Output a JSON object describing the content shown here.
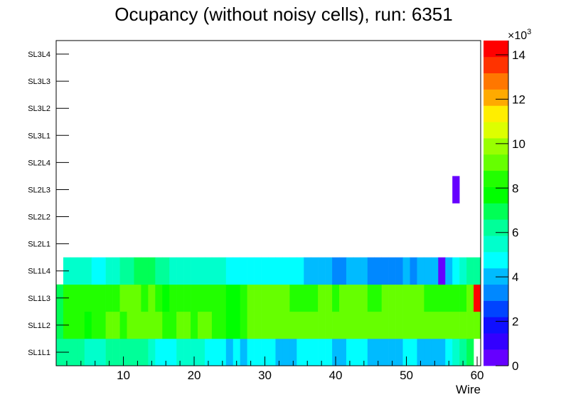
{
  "chart_data": {
    "type": "heatmap",
    "title": "Ocupancy (without noisy cells), run: 6351",
    "xlabel": "Wire",
    "ylabel": "",
    "xlim": [
      0.5,
      60.5
    ],
    "x_ticks": [
      10,
      20,
      30,
      40,
      50,
      60
    ],
    "y_categories": [
      "SL1L1",
      "SL1L2",
      "SL1L3",
      "SL1L4",
      "SL2L1",
      "SL2L2",
      "SL2L3",
      "SL2L4",
      "SL3L1",
      "SL3L2",
      "SL3L3",
      "SL3L4"
    ],
    "z_unit_label": "×10",
    "z_unit_exp": "3",
    "z_range_thousands": [
      0,
      14.64
    ],
    "z_ticks": [
      "0",
      "2",
      "4",
      "6",
      "8",
      "10",
      "12",
      "14"
    ],
    "palette": [
      "#6600ff",
      "#3300ff",
      "#0f0fff",
      "#0044ff",
      "#0088ff",
      "#00bbff",
      "#00ffff",
      "#00ffcc",
      "#00ff99",
      "#00ff55",
      "#00ff00",
      "#22ff00",
      "#66ff00",
      "#99ff00",
      "#ddff00",
      "#ffee00",
      "#ffaa00",
      "#ff7700",
      "#ff3300",
      "#ff0000"
    ],
    "rows_thousands": {
      "SL1L1": [
        6.2,
        6.2,
        6.2,
        6.2,
        5.5,
        5.5,
        5.5,
        6.2,
        6.2,
        6.2,
        6.2,
        6.2,
        6.2,
        5.5,
        4.8,
        4.8,
        4.8,
        5.5,
        5.5,
        5.5,
        5.5,
        4.8,
        4.8,
        4.8,
        4.0,
        4.8,
        4.0,
        4.8,
        4.8,
        4.8,
        4.8,
        4.0,
        4.0,
        4.0,
        4.8,
        4.8,
        4.8,
        4.8,
        4.8,
        4.0,
        4.0,
        4.8,
        4.8,
        4.8,
        4.0,
        4.0,
        4.0,
        4.0,
        4.0,
        4.8,
        4.8,
        4.0,
        4.0,
        4.0,
        4.0,
        4.8,
        5.5,
        6.2,
        6.9,
        null
      ],
      "SL1L2": [
        6.9,
        8.4,
        8.4,
        8.4,
        7.7,
        8.4,
        8.4,
        9.2,
        9.2,
        8.4,
        9.2,
        9.2,
        9.2,
        9.2,
        9.2,
        8.4,
        8.4,
        9.2,
        9.2,
        8.4,
        9.2,
        9.2,
        8.4,
        8.4,
        7.7,
        7.7,
        8.4,
        9.2,
        9.2,
        9.2,
        9.2,
        9.2,
        9.2,
        9.2,
        9.2,
        9.2,
        9.2,
        9.2,
        9.2,
        9.2,
        9.2,
        9.2,
        9.2,
        9.2,
        9.2,
        9.2,
        9.2,
        9.2,
        9.2,
        9.2,
        9.2,
        9.2,
        9.2,
        9.2,
        9.2,
        9.2,
        9.2,
        9.2,
        9.2,
        9.2
      ],
      "SL1L3": [
        6.9,
        8.4,
        8.4,
        8.4,
        8.4,
        8.4,
        8.4,
        8.4,
        8.4,
        9.2,
        9.2,
        9.2,
        8.4,
        9.2,
        8.4,
        7.7,
        8.4,
        8.4,
        8.4,
        8.4,
        8.4,
        8.4,
        8.4,
        8.4,
        7.7,
        7.7,
        8.4,
        9.2,
        9.2,
        9.2,
        9.2,
        9.2,
        9.2,
        8.4,
        8.4,
        8.4,
        8.4,
        9.2,
        9.2,
        8.4,
        9.2,
        9.2,
        9.2,
        9.2,
        8.4,
        8.4,
        9.2,
        9.2,
        9.2,
        9.2,
        9.2,
        9.2,
        8.4,
        8.4,
        8.4,
        8.4,
        8.4,
        8.4,
        9.2,
        14.3
      ],
      "SL1L4": [
        null,
        5.5,
        5.5,
        5.5,
        5.5,
        4.8,
        4.8,
        5.5,
        5.5,
        6.2,
        6.2,
        6.9,
        6.9,
        6.9,
        6.2,
        6.2,
        5.5,
        5.5,
        5.5,
        5.5,
        5.5,
        5.5,
        5.5,
        5.5,
        4.8,
        4.8,
        4.8,
        4.8,
        4.8,
        4.8,
        4.8,
        4.8,
        4.8,
        4.8,
        4.8,
        4.0,
        4.0,
        4.0,
        4.0,
        3.3,
        3.3,
        4.0,
        4.0,
        4.0,
        3.3,
        3.3,
        3.3,
        3.3,
        3.3,
        4.0,
        3.3,
        4.0,
        4.0,
        4.0,
        0.4,
        4.0,
        4.8,
        5.5,
        6.2,
        6.2
      ],
      "SL2L3": [
        null,
        null,
        null,
        null,
        null,
        null,
        null,
        null,
        null,
        null,
        null,
        null,
        null,
        null,
        null,
        null,
        null,
        null,
        null,
        null,
        null,
        null,
        null,
        null,
        null,
        null,
        null,
        null,
        null,
        null,
        null,
        null,
        null,
        null,
        null,
        null,
        null,
        null,
        null,
        null,
        null,
        null,
        null,
        null,
        null,
        null,
        null,
        null,
        null,
        null,
        null,
        null,
        null,
        null,
        null,
        null,
        0.4,
        null,
        null,
        null
      ]
    }
  }
}
